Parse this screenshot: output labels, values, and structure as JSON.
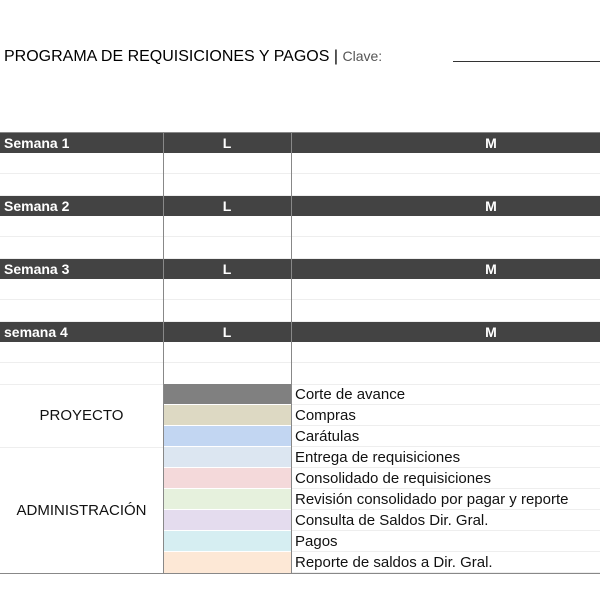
{
  "header": {
    "title": "PROGRAMA DE REQUISICIONES Y PAGOS",
    "separator": "|",
    "clave_label": "Clave:"
  },
  "weeks": [
    {
      "label": "Semana 1",
      "day1": "L",
      "day2": "M"
    },
    {
      "label": "Semana 2",
      "day1": "L",
      "day2": "M"
    },
    {
      "label": "Semana 3",
      "day1": "L",
      "day2": "M"
    },
    {
      "label": "semana 4",
      "day1": "L",
      "day2": "M"
    }
  ],
  "legend": {
    "groups": [
      {
        "label": "PROYECTO"
      },
      {
        "label": "ADMINISTRACIÓN"
      }
    ],
    "items": [
      {
        "label": "Corte de avance",
        "color": "#808080"
      },
      {
        "label": "Compras",
        "color": "#ddd9c3"
      },
      {
        "label": "Carátulas",
        "color": "#c2d6f2"
      },
      {
        "label": "Entrega de requisiciones",
        "color": "#dce6f1"
      },
      {
        "label": "Consolidado de requisiciones",
        "color": "#f4d9da"
      },
      {
        "label": "Revisión consolidado por pagar y reporte",
        "color": "#e6f1dd"
      },
      {
        "label": "Consulta de Saldos Dir. Gral.",
        "color": "#e4dcee"
      },
      {
        "label": "Pagos",
        "color": "#d6eef2"
      },
      {
        "label": "Reporte de saldos a Dir. Gral.",
        "color": "#fde8d6"
      }
    ]
  }
}
